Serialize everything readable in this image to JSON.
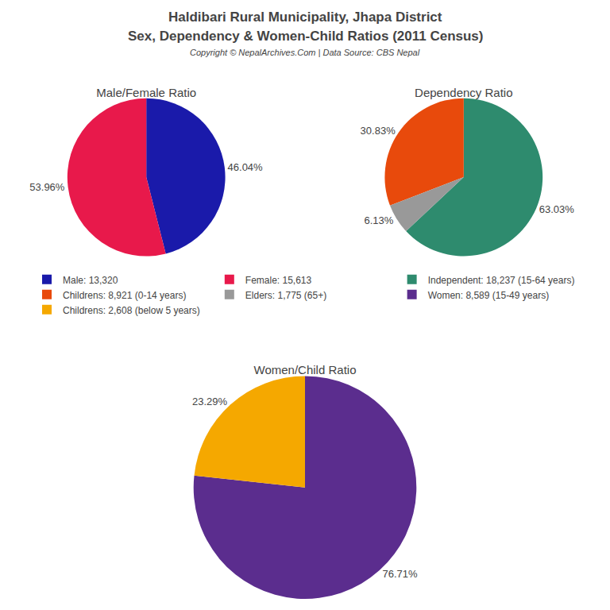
{
  "title": "Haldibari Rural Municipality, Jhapa District",
  "subtitle": "Sex, Dependency & Women-Child Ratios (2011 Census)",
  "annotations": [
    "Copyright © NepalArchives.Com | Data Source: CBS Nepal"
  ],
  "chart_data": [
    {
      "type": "pie",
      "title": "Male/Female Ratio",
      "categories": [
        "Male: 13,320",
        "Female: 15,613"
      ],
      "values": [
        46.04,
        53.96
      ],
      "value_labels": [
        "46.04%",
        "53.96%"
      ],
      "data_labels": true,
      "colors": [
        "#1a1aaa",
        "#e8194b"
      ]
    },
    {
      "type": "pie",
      "title": "Dependency Ratio",
      "categories": [
        "Independent: 18,237 (15-64 years)",
        "Childrens: 8,921 (0-14 years)",
        "Elders: 1,775 (65+)"
      ],
      "values": [
        63.03,
        30.83,
        6.13
      ],
      "value_labels": [
        "63.03%",
        "30.83%",
        "6.13%"
      ],
      "data_labels": true,
      "colors": [
        "#2e8b6e",
        "#e84a0c",
        "#999999"
      ]
    },
    {
      "type": "pie",
      "title": "Women/Child Ratio",
      "categories": [
        "Women: 8,589 (15-49 years)",
        "Childrens: 2,608 (below 5 years)"
      ],
      "values": [
        76.71,
        23.29
      ],
      "value_labels": [
        "76.71%",
        "23.29%"
      ],
      "data_labels": true,
      "colors": [
        "#5b2d8e",
        "#f5a800"
      ]
    }
  ]
}
